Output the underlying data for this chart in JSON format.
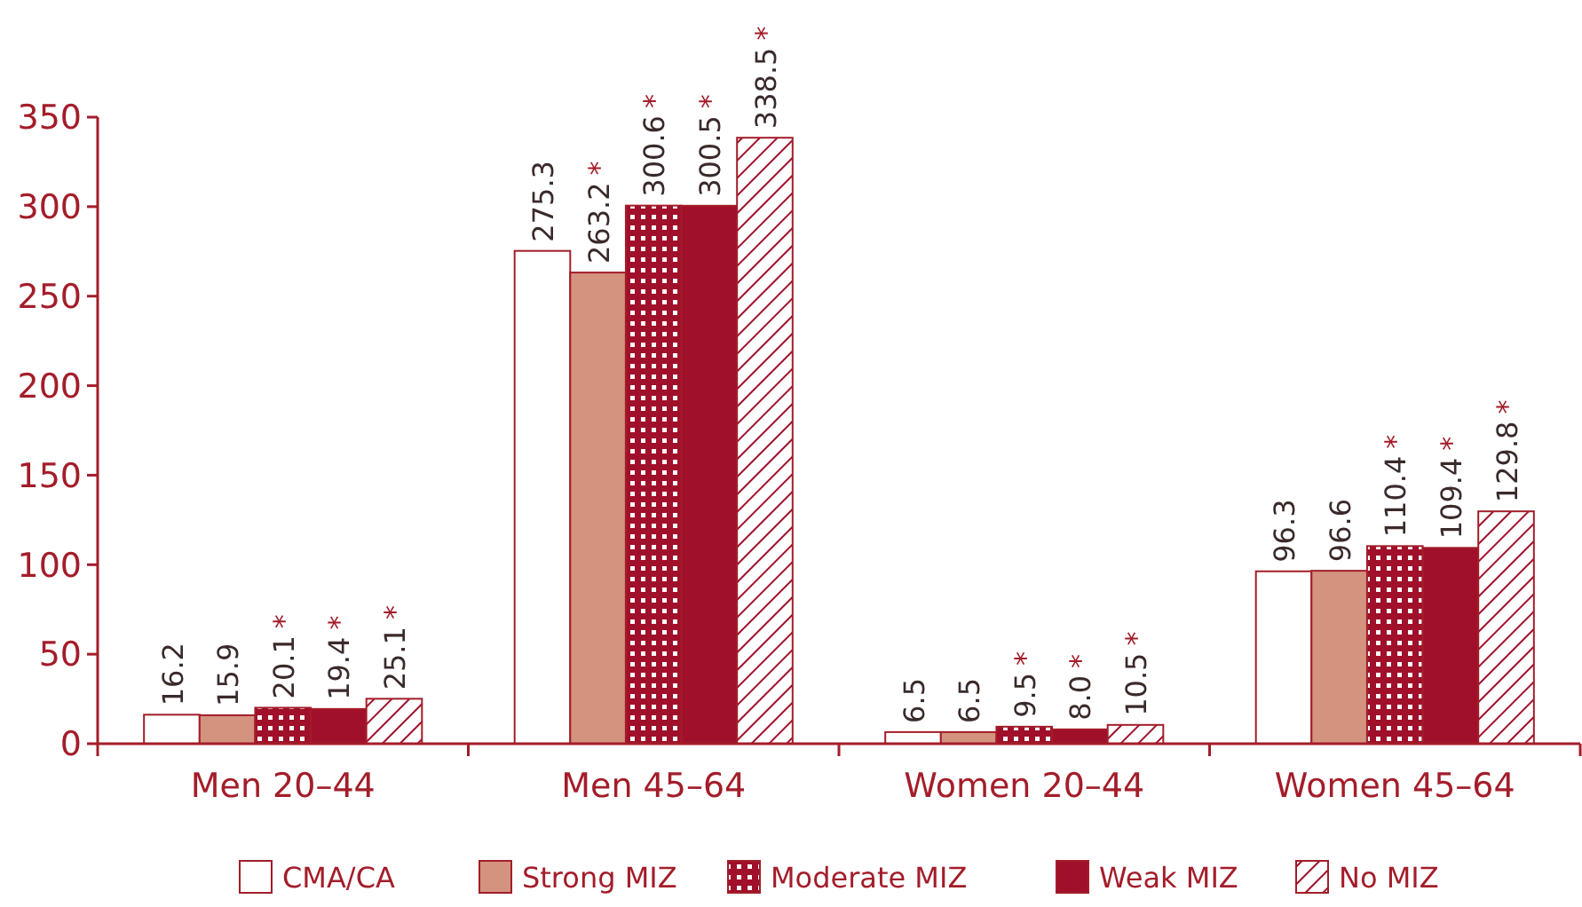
{
  "chart_data": {
    "type": "bar",
    "categories": [
      "Men 20–44",
      "Men 45–64",
      "Women 20–44",
      "Women 45–64"
    ],
    "series": [
      {
        "name": "CMA/CA",
        "color": "#ffffff",
        "values": [
          16.2,
          275.3,
          6.5,
          96.3
        ],
        "value_labels": [
          "16.2",
          "275.3",
          "6.5",
          "96.3"
        ]
      },
      {
        "name": "Strong MIZ",
        "color": "#d4937e",
        "values": [
          15.9,
          263.2,
          6.5,
          96.6
        ],
        "value_labels": [
          "15.9",
          "263.2 *",
          "6.5",
          "96.6"
        ]
      },
      {
        "name": "Moderate MIZ",
        "color": "#a0102a",
        "values": [
          20.1,
          300.6,
          9.5,
          110.4
        ],
        "value_labels": [
          "20.1 *",
          "300.6 *",
          "9.5 *",
          "110.4 *"
        ]
      },
      {
        "name": "Weak MIZ",
        "color": "#a0102a",
        "values": [
          19.4,
          300.5,
          8.0,
          109.4
        ],
        "value_labels": [
          "19.4 *",
          "300.5 *",
          "8.0 *",
          "109.4 *"
        ]
      },
      {
        "name": "No MIZ",
        "color": "#a0102a",
        "values": [
          25.1,
          338.5,
          10.5,
          129.8
        ],
        "value_labels": [
          "25.1 *",
          "338.5 *",
          "10.5 *",
          "129.8 *"
        ]
      }
    ],
    "ylim": [
      0,
      350
    ],
    "yticks": [
      0,
      50,
      100,
      150,
      200,
      250,
      300,
      350
    ],
    "grid": false,
    "legend": "bottom"
  }
}
